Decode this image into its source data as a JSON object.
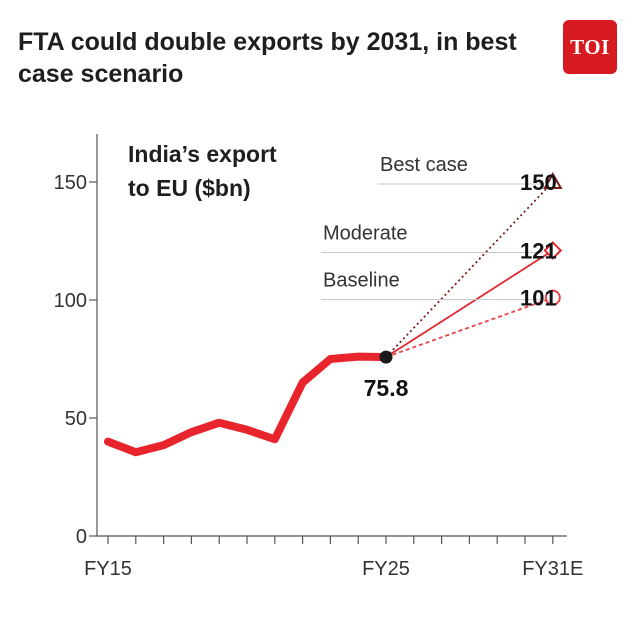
{
  "header": {
    "title": "FTA could double exports by 2031, in best case scenario",
    "logo_text": "TOI"
  },
  "colors": {
    "line": "#e8242c",
    "best": "#7a1a1a",
    "moderate": "#e0282f",
    "baseline": "#e8424a",
    "point": "#1a1a1a"
  },
  "chart_data": {
    "type": "line",
    "title": "India’s export to EU ($bn)",
    "title_lines": [
      "India’s export",
      "to EU ($bn)"
    ],
    "ylim": [
      0,
      170
    ],
    "yticks": [
      0,
      50,
      100,
      150
    ],
    "x_labels": [
      "FY15",
      "FY25",
      "FY31E"
    ],
    "series": [
      {
        "x": [
          "FY15",
          "FY16",
          "FY17",
          "FY18",
          "FY19",
          "FY20",
          "FY21",
          "FY22",
          "FY23",
          "FY24",
          "FY25"
        ],
        "values": [
          40,
          35.5,
          38.5,
          44,
          48,
          45,
          41,
          65,
          75,
          76,
          75.8
        ]
      }
    ],
    "current": {
      "x": "FY25",
      "value": 75.8,
      "label": "75.8"
    },
    "scenarios": [
      {
        "name": "Best case",
        "x": "FY31E",
        "value": 150,
        "label": "150",
        "marker": "triangle",
        "line": "dotted"
      },
      {
        "name": "Moderate",
        "x": "FY31E",
        "value": 121,
        "label": "121",
        "marker": "diamond",
        "line": "solid"
      },
      {
        "name": "Baseline",
        "x": "FY31E",
        "value": 101,
        "label": "101",
        "marker": "circle",
        "line": "dashed"
      }
    ]
  }
}
